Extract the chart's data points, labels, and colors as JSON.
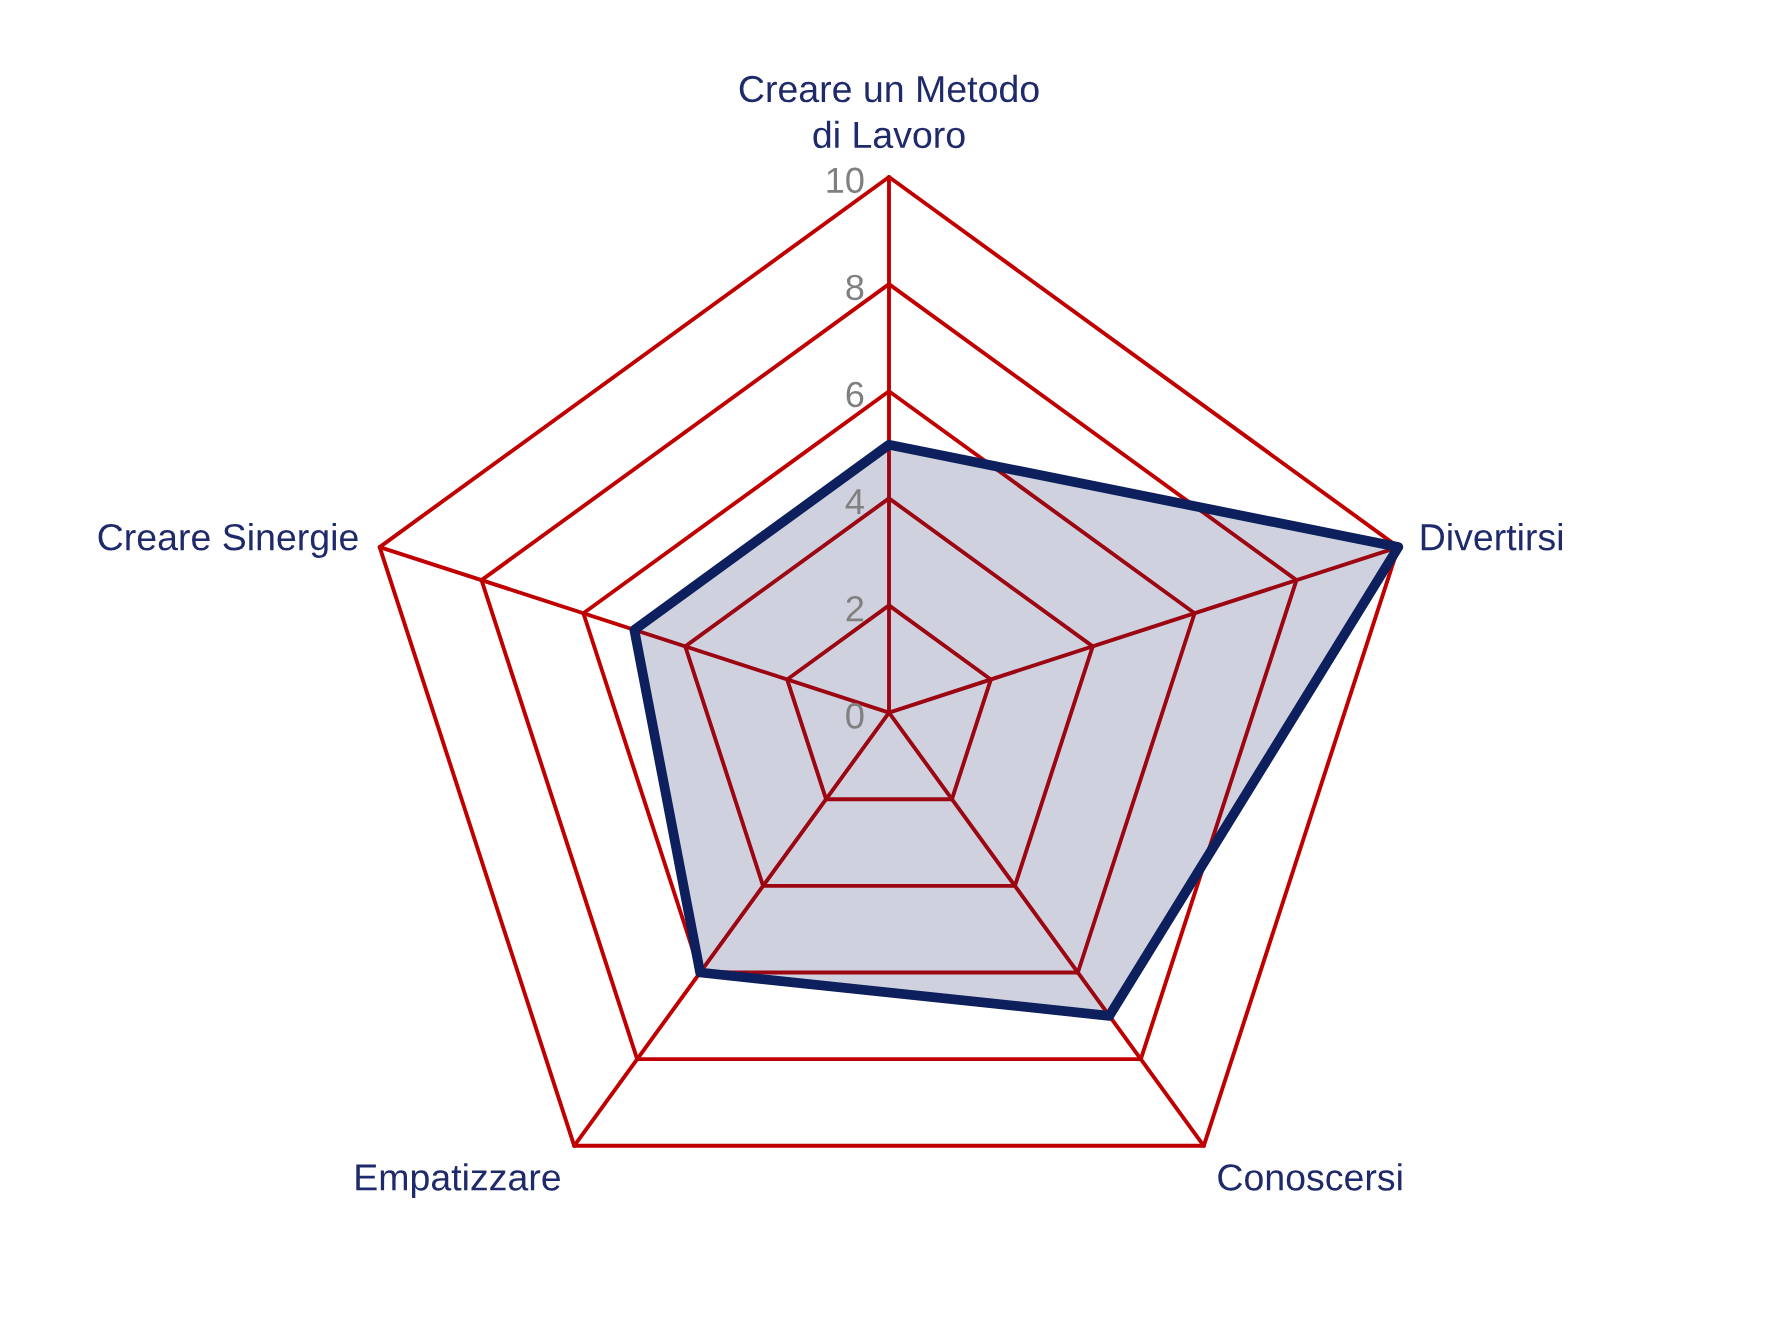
{
  "chart_data": {
    "type": "radar",
    "categories": [
      "Creare un Metodo\ndi Lavoro",
      "Divertirsi",
      "Conoscersi",
      "Empatizzare",
      "Creare Sinergie"
    ],
    "series": [
      {
        "color": "#0d1f5c",
        "values": [
          5,
          10,
          7,
          6,
          5
        ]
      }
    ],
    "ylim": [
      0,
      10
    ],
    "yticks": [
      0,
      2,
      4,
      6,
      8,
      10
    ],
    "grid": true
  }
}
